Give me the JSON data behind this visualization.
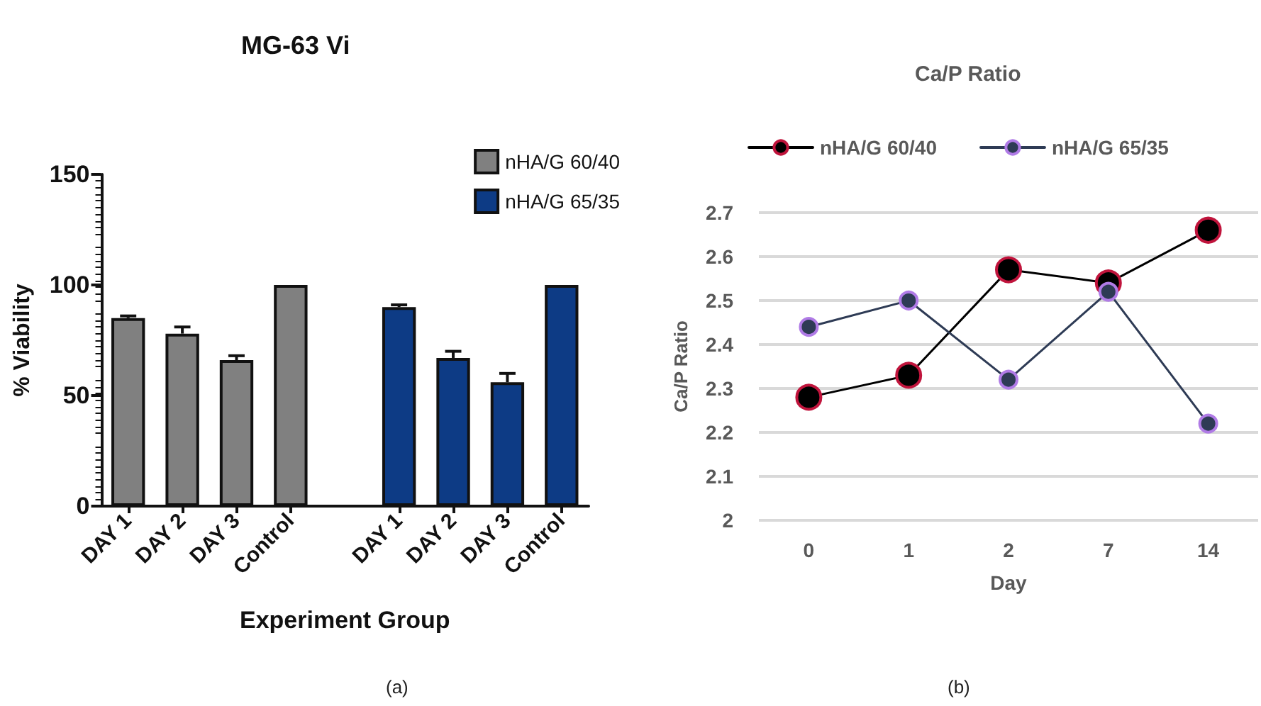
{
  "chart_data": [
    {
      "type": "bar",
      "title": "MG-63 Vi",
      "xlabel": "Experiment Group",
      "ylabel": "% Viability",
      "categories": [
        "DAY 1",
        "DAY 2",
        "DAY 3",
        "Control",
        null,
        "DAY 1",
        "DAY 2",
        "DAY 3",
        "Control"
      ],
      "series": [
        {
          "name": "nHA/G 60/40",
          "color": "#808080",
          "values": [
            85,
            78,
            66,
            100,
            null,
            null,
            null,
            null,
            null
          ],
          "errors": [
            [
              85,
              86
            ],
            [
              78,
              81
            ],
            [
              66,
              68
            ],
            null,
            null,
            null,
            null,
            null,
            null
          ]
        },
        {
          "name": "nHA/G 65/35",
          "color": "#0d3b85",
          "values": [
            null,
            null,
            null,
            null,
            null,
            90,
            67,
            56,
            100
          ],
          "errors": [
            null,
            null,
            null,
            null,
            null,
            [
              90,
              91
            ],
            [
              67,
              70
            ],
            [
              56,
              60
            ],
            null
          ]
        }
      ],
      "ylim": [
        0,
        150
      ],
      "yticks": [
        0,
        50,
        100,
        150
      ],
      "grid": false,
      "legend": "top right",
      "annotations": [
        "(a)"
      ]
    },
    {
      "type": "line",
      "title": "Ca/P Ratio",
      "xlabel": "Day",
      "ylabel": "Ca/P Ratio",
      "categories": [
        "0",
        "1",
        "2",
        "7",
        "14"
      ],
      "series": [
        {
          "name": "nHA/G 60/40",
          "color": "#000000",
          "values": [
            2.28,
            2.33,
            2.57,
            2.54,
            2.66
          ]
        },
        {
          "name": "nHA/G 65/35",
          "color": "#2e3b55",
          "values": [
            2.44,
            2.5,
            2.32,
            2.52,
            2.22
          ]
        }
      ],
      "ylim": [
        2,
        2.7
      ],
      "yticks": [
        2,
        2.1,
        2.2,
        2.3,
        2.4,
        2.5,
        2.6,
        2.7
      ],
      "grid": "y",
      "legend": "top",
      "marker": "circle",
      "line_style": "solid",
      "annotations": [
        "(b)"
      ]
    }
  ]
}
